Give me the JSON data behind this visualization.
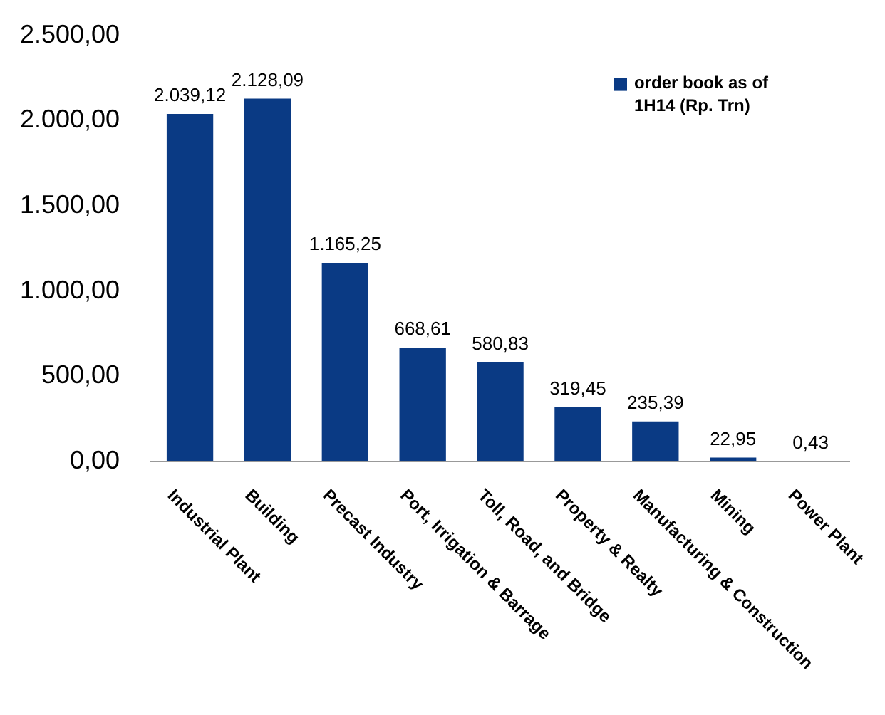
{
  "chart_data": {
    "type": "bar",
    "categories": [
      "Industrial Plant",
      "Building",
      "Precast Industry",
      "Port, Irrigation & Barrage",
      "Toll, Road, and Bridge",
      "Property & Realty",
      "Manufacturing & Construction",
      "Mining",
      "Power Plant"
    ],
    "series": [
      {
        "name": "order book as of 1H14 (Rp. Trn)",
        "color": "#0a3a84",
        "values": [
          2039.12,
          2128.09,
          1165.25,
          668.61,
          580.83,
          319.45,
          235.39,
          22.95,
          0.43
        ],
        "value_labels": [
          "2.039,12",
          "2.128,09",
          "1.165,25",
          "668,61",
          "580,83",
          "319,45",
          "235,39",
          "22,95",
          "0,43"
        ]
      }
    ],
    "ylim": [
      0,
      2500
    ],
    "yticks": [
      {
        "value": 0,
        "label": "0,00"
      },
      {
        "value": 500,
        "label": "500,00"
      },
      {
        "value": 1000,
        "label": "1.000,00"
      },
      {
        "value": 1500,
        "label": "1.500,00"
      },
      {
        "value": 2000,
        "label": "2.000,00"
      },
      {
        "value": 2500,
        "label": "2.500,00"
      }
    ],
    "grid": false,
    "legend": "top right"
  }
}
